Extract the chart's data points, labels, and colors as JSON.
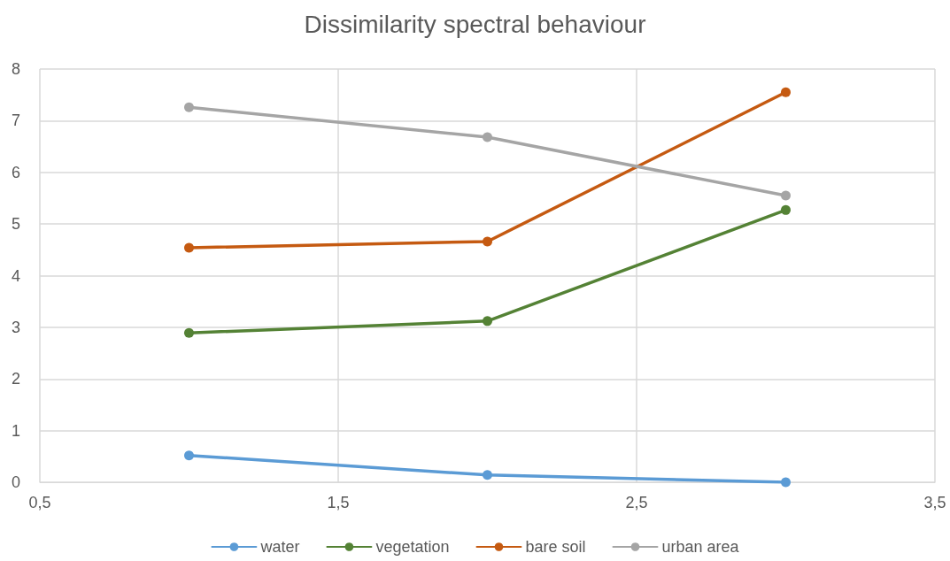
{
  "chart_data": {
    "type": "line",
    "title": "Dissimilarity spectral behaviour",
    "x": [
      1,
      2,
      3
    ],
    "series": [
      {
        "name": "water",
        "color": "#5b9bd5",
        "values": [
          0.52,
          0.14,
          0
        ]
      },
      {
        "name": "vegetation",
        "color": "#548235",
        "values": [
          2.89,
          3.12,
          5.27
        ]
      },
      {
        "name": "bare soil",
        "color": "#c55a11",
        "values": [
          4.54,
          4.66,
          7.55
        ]
      },
      {
        "name": "urban area",
        "color": "#a5a5a5",
        "values": [
          7.26,
          6.68,
          5.55
        ]
      }
    ],
    "xlim": [
      0.5,
      3.5
    ],
    "xticks": [
      {
        "value": 0.5,
        "label": "0,5"
      },
      {
        "value": 1.5,
        "label": "1,5"
      },
      {
        "value": 2.5,
        "label": "2,5"
      },
      {
        "value": 3.5,
        "label": "3,5"
      }
    ],
    "ylim": [
      0,
      8
    ],
    "yticks": [
      0,
      1,
      2,
      3,
      4,
      5,
      6,
      7,
      8
    ],
    "grid": true,
    "legend": "bottom",
    "marker": "circle",
    "line_style": "solid"
  }
}
